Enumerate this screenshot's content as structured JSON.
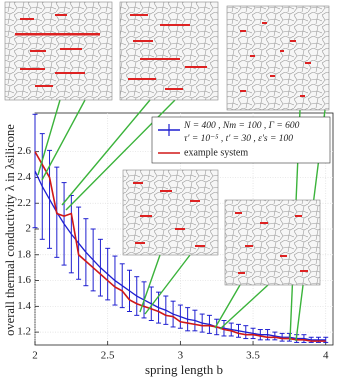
{
  "chart_data": {
    "type": "errorbar-line",
    "xlabel": "spring length b",
    "ylabel": "overall thermal conductivity λ in λsilicone",
    "xlim": [
      2,
      4.05
    ],
    "ylim": [
      1.1,
      2.9
    ],
    "xticks": [
      2,
      2.5,
      3,
      3.5,
      4
    ],
    "yticks": [
      1.2,
      1.4,
      1.6,
      1.8,
      2,
      2.2,
      2.4,
      2.6
    ],
    "grid": true,
    "x": [
      2,
      2.05,
      2.1,
      2.15,
      2.2,
      2.25,
      2.3,
      2.35,
      2.4,
      2.45,
      2.5,
      2.55,
      2.6,
      2.65,
      2.7,
      2.75,
      2.8,
      2.85,
      2.9,
      2.95,
      3,
      3.05,
      3.1,
      3.15,
      3.2,
      3.25,
      3.3,
      3.35,
      3.4,
      3.45,
      3.5,
      3.55,
      3.6,
      3.65,
      3.7,
      3.75,
      3.8,
      3.85,
      3.9,
      3.95,
      4
    ],
    "series": [
      {
        "name": [
          "N = 400 , Nm = 100 , Γ = 600",
          "τ′ = 10⁻⁵ , t′ = 30 , ε′s = 100"
        ],
        "color": "#1f1fd0",
        "values": [
          2.45,
          2.33,
          2.23,
          2.13,
          2.04,
          1.96,
          1.89,
          1.82,
          1.76,
          1.7,
          1.65,
          1.6,
          1.56,
          1.52,
          1.48,
          1.45,
          1.42,
          1.39,
          1.37,
          1.34,
          1.32,
          1.3,
          1.29,
          1.27,
          1.26,
          1.24,
          1.23,
          1.22,
          1.21,
          1.2,
          1.19,
          1.18,
          1.18,
          1.17,
          1.16,
          1.16,
          1.15,
          1.15,
          1.14,
          1.14,
          1.14
        ],
        "errors": [
          0.44,
          0.41,
          0.38,
          0.35,
          0.32,
          0.3,
          0.28,
          0.26,
          0.24,
          0.22,
          0.2,
          0.19,
          0.17,
          0.16,
          0.15,
          0.14,
          0.13,
          0.12,
          0.11,
          0.1,
          0.09,
          0.09,
          0.08,
          0.07,
          0.07,
          0.06,
          0.06,
          0.05,
          0.05,
          0.05,
          0.04,
          0.04,
          0.04,
          0.03,
          0.03,
          0.03,
          0.03,
          0.03,
          0.02,
          0.02,
          0.02
        ]
      },
      {
        "name": "example system",
        "color": "#d01818",
        "values": [
          2.6,
          2.5,
          2.4,
          2.12,
          2.1,
          2.12,
          1.8,
          1.75,
          1.7,
          1.65,
          1.6,
          1.55,
          1.52,
          1.45,
          1.42,
          1.4,
          1.38,
          1.36,
          1.33,
          1.32,
          1.28,
          1.27,
          1.26,
          1.25,
          1.25,
          1.24,
          1.22,
          1.21,
          1.19,
          1.18,
          1.18,
          1.17,
          1.16,
          1.16,
          1.15,
          1.15,
          1.14,
          1.14,
          1.13,
          1.13,
          1.13
        ]
      }
    ]
  }
}
